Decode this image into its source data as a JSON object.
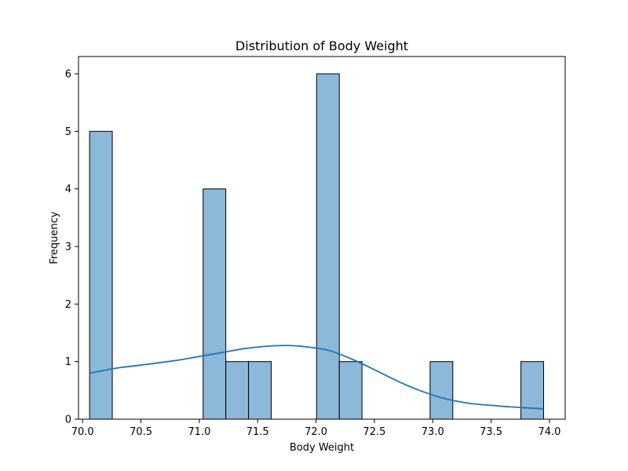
{
  "chart_data": {
    "type": "bar",
    "title": "Distribution of Body Weight",
    "xlabel": "Body Weight",
    "ylabel": "Frequency",
    "xlim": [
      69.965,
      74.135
    ],
    "ylim": [
      0,
      6.3
    ],
    "xticks": [
      70.0,
      70.5,
      71.0,
      71.5,
      72.0,
      72.5,
      73.0,
      73.5,
      74.0
    ],
    "xtick_labels": [
      "70.0",
      "70.5",
      "71.0",
      "71.5",
      "72.0",
      "72.5",
      "73.0",
      "73.5",
      "74.0"
    ],
    "yticks": [
      0,
      1,
      2,
      3,
      4,
      5,
      6
    ],
    "ytick_labels": [
      "0",
      "1",
      "2",
      "3",
      "4",
      "5",
      "6"
    ],
    "bins": {
      "start": 70.06,
      "width": 0.1945,
      "counts": [
        5,
        0,
        0,
        0,
        0,
        4,
        1,
        1,
        0,
        0,
        6,
        1,
        0,
        0,
        0,
        1,
        0,
        0,
        0,
        1
      ]
    },
    "kde": {
      "x": [
        70.06,
        70.3,
        70.5,
        70.8,
        71.0,
        71.2,
        71.4,
        71.6,
        71.75,
        71.9,
        72.1,
        72.3,
        72.5,
        72.7,
        72.9,
        73.1,
        73.3,
        73.5,
        73.7,
        73.95
      ],
      "y": [
        0.8,
        0.89,
        0.94,
        1.02,
        1.09,
        1.16,
        1.23,
        1.27,
        1.28,
        1.26,
        1.2,
        1.05,
        0.86,
        0.66,
        0.49,
        0.36,
        0.28,
        0.24,
        0.21,
        0.18
      ]
    },
    "grid": false,
    "colors": {
      "bar_fill": "#8cb8d9",
      "bar_edge": "#000000",
      "kde_line": "#1f77b4"
    }
  }
}
